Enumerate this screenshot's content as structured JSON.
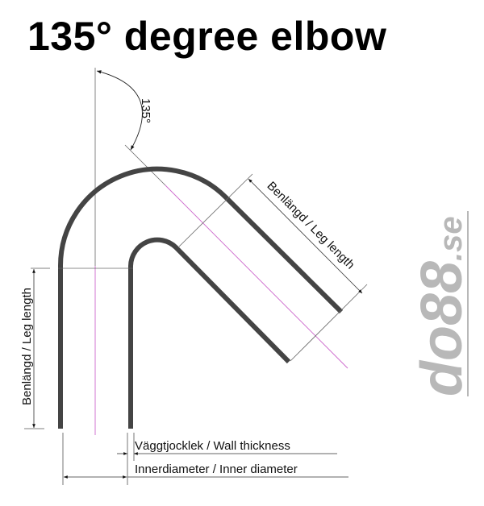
{
  "title": "135° degree elbow",
  "angle_label": "135°",
  "labels": {
    "leg_length_vertical": "Benlängd / Leg length",
    "leg_length_diagonal": "Benlängd / Leg length",
    "wall_thickness": "Väggtjocklek / Wall thickness",
    "inner_diameter": "Innerdiameter / Inner diameter"
  },
  "logo": {
    "text_main": "do88",
    "text_suffix": ".se"
  },
  "colors": {
    "pipe": "#444444",
    "centerline": "#cc66cc",
    "dimension": "#555555",
    "logo": "#b8b8b8"
  }
}
